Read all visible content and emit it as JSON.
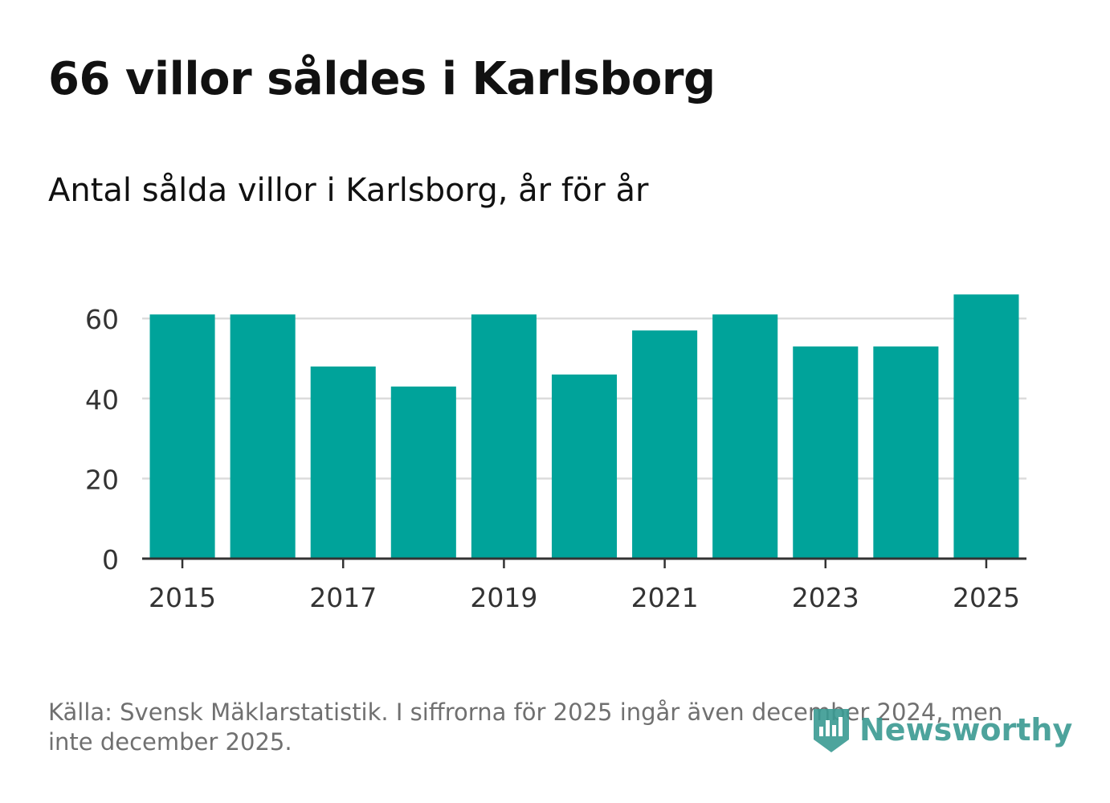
{
  "title": "66 villor såldes i Karlsborg",
  "subtitle": "Antal sålda villor i Karlsborg, år för år",
  "source": "Källa: Svensk Mäklarstatistik. I siffrorna för 2025 ingår även december 2024, men inte december 2025.",
  "brand": {
    "name": "Newsworthy",
    "icon": "newsworthy-logo-icon"
  },
  "colors": {
    "bar": "#00a39a",
    "grid": "#dcdcdc",
    "axis": "#333333",
    "brand": "#3a9a92"
  },
  "chart_data": {
    "type": "bar",
    "categories": [
      "2015",
      "2016",
      "2017",
      "2018",
      "2019",
      "2020",
      "2021",
      "2022",
      "2023",
      "2024",
      "2025"
    ],
    "values": [
      61,
      61,
      48,
      43,
      61,
      46,
      57,
      61,
      53,
      53,
      66
    ],
    "xticks": [
      "2015",
      "2017",
      "2019",
      "2021",
      "2023",
      "2025"
    ],
    "yticks": [
      0,
      20,
      40,
      60
    ],
    "ylim": [
      0,
      70
    ],
    "grid": true,
    "title": "66 villor såldes i Karlsborg",
    "subtitle": "Antal sålda villor i Karlsborg, år för år",
    "xlabel": "",
    "ylabel": ""
  }
}
